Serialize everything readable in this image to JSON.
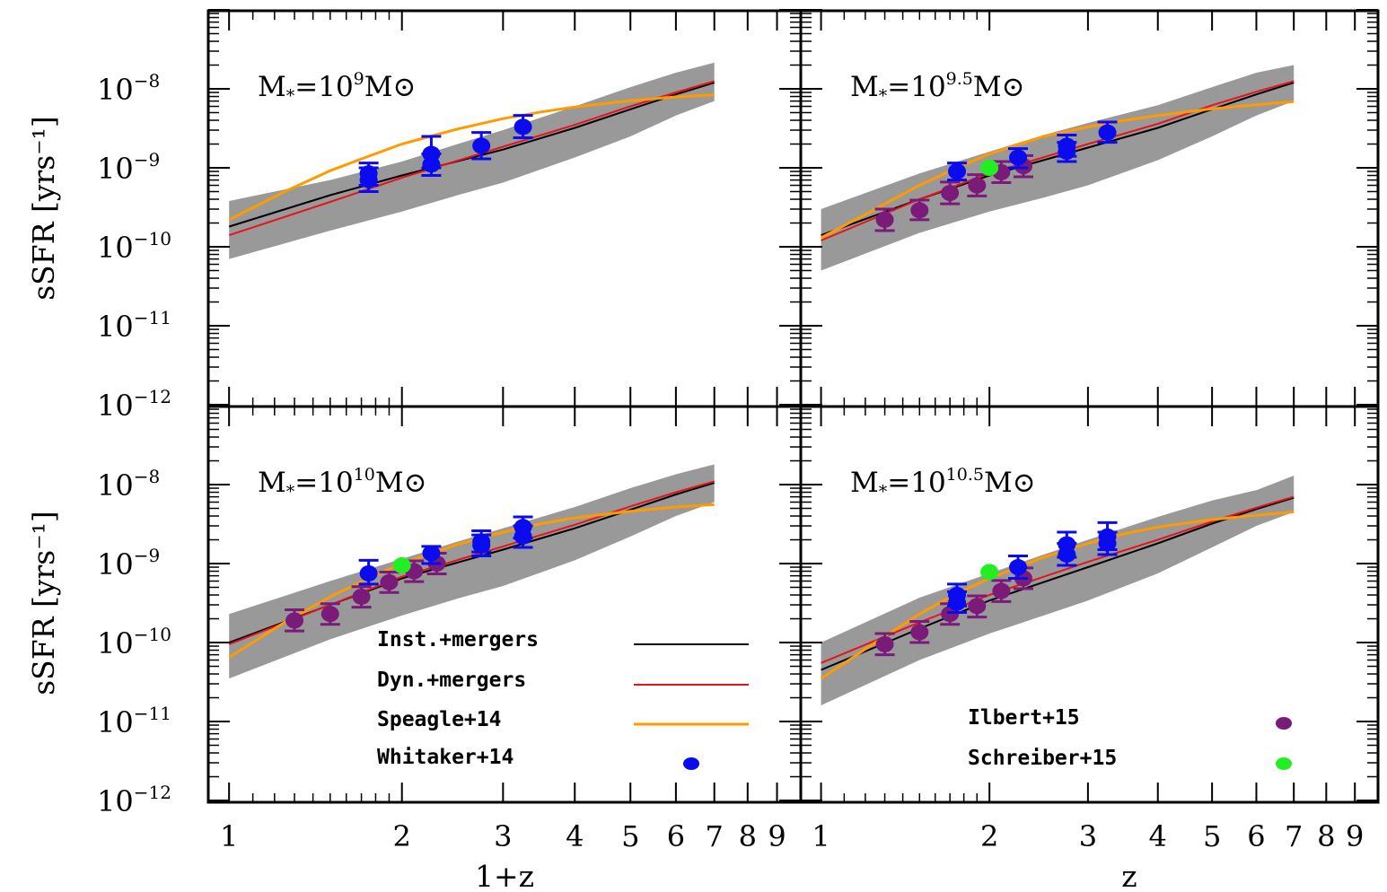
{
  "chart_data": {
    "type": "scatter",
    "xscale": "log",
    "yscale": "log",
    "xlim": [
      0.92,
      9.9
    ],
    "ylim": [
      1e-12,
      1e-07
    ],
    "x_tick_labels": [
      "1",
      "2",
      "3",
      "4",
      "5",
      "6",
      "7",
      "8",
      "9"
    ],
    "y_tick_labels": [
      {
        "base": "10",
        "exp": "−8"
      },
      {
        "base": "10",
        "exp": "−9"
      },
      {
        "base": "10",
        "exp": "−10"
      },
      {
        "base": "10",
        "exp": "−11"
      },
      {
        "base": "10",
        "exp": "−12"
      }
    ],
    "ylabel": "sSFR [yrs⁻¹]",
    "xlabel": "1+z",
    "xlabel_right": "z",
    "legend": {
      "lines": [
        {
          "label": "Inst.+mergers",
          "color": "#000000"
        },
        {
          "label": "Dyn.+mergers",
          "color": "#e8141c"
        },
        {
          "label": "Speagle+14",
          "color": "#ff9a00"
        }
      ],
      "markers": [
        {
          "label": "Whitaker+14",
          "color": "#0b0bef"
        },
        {
          "label": "Ilbert+15",
          "color": "#7a1b7a"
        },
        {
          "label": "Schreiber+15",
          "color": "#22ee22"
        }
      ]
    },
    "colors": {
      "band": "#999999",
      "inst": "#000000",
      "dyn": "#e8141c",
      "speagle": "#ff9a00",
      "whitaker": "#0b0bef",
      "ilbert": "#7a1b7a",
      "schreiber": "#22ee22"
    },
    "panels": [
      {
        "label": {
          "prefix": "M",
          "sub": "*",
          "eq": "=10",
          "exp": "9",
          "suffix": "M⊙"
        },
        "band": {
          "x": [
            1,
            1.5,
            2,
            2.5,
            3,
            4,
            5,
            6,
            7
          ],
          "lo": [
            7e-11,
            1.6e-10,
            2.8e-10,
            4.5e-10,
            6.5e-10,
            1.35e-09,
            2.5e-09,
            4.6e-09,
            7e-09
          ],
          "hi": [
            3.8e-10,
            7e-10,
            1.2e-09,
            2e-09,
            3e-09,
            6e-09,
            1.05e-08,
            1.6e-08,
            2.15e-08
          ]
        },
        "inst": {
          "x": [
            1,
            1.5,
            2,
            3,
            4,
            5,
            6,
            7
          ],
          "y": [
            1.8e-10,
            4.5e-10,
            8e-10,
            1.7e-09,
            3.2e-09,
            5.5e-09,
            8.5e-09,
            1.2e-08
          ]
        },
        "dyn": {
          "x": [
            1,
            1.5,
            2,
            3,
            4,
            5,
            6,
            7
          ],
          "y": [
            1.4e-10,
            3.7e-10,
            7.5e-10,
            1.85e-09,
            3.5e-09,
            6e-09,
            9e-09,
            1.25e-08
          ]
        },
        "speagle": {
          "x": [
            1,
            1.25,
            1.5,
            1.75,
            2,
            2.5,
            3,
            3.5,
            4,
            5,
            6,
            7
          ],
          "y": [
            2.2e-10,
            5e-10,
            9.2e-10,
            1.4e-09,
            2e-09,
            3.1e-09,
            4.2e-09,
            5.1e-09,
            5.9e-09,
            7.1e-09,
            7.9e-09,
            8.4e-09
          ]
        },
        "whitaker": [
          {
            "x": 1.75,
            "y": 8.5e-10,
            "lo": 6e-10,
            "hi": 1.15e-09
          },
          {
            "x": 1.75,
            "y": 7e-10,
            "lo": 5e-10,
            "hi": 1e-09
          },
          {
            "x": 2.25,
            "y": 1.5e-09,
            "lo": 1e-09,
            "hi": 2.5e-09
          },
          {
            "x": 2.25,
            "y": 1.1e-09,
            "lo": 8e-10,
            "hi": 1.5e-09
          },
          {
            "x": 2.75,
            "y": 1.9e-09,
            "lo": 1.3e-09,
            "hi": 2.8e-09
          },
          {
            "x": 3.25,
            "y": 3.3e-09,
            "lo": 2.4e-09,
            "hi": 4.6e-09
          }
        ],
        "ilbert": [],
        "schreiber": []
      },
      {
        "label": {
          "prefix": "M",
          "sub": "*",
          "eq": "=10",
          "exp": "9.5",
          "suffix": "M⊙"
        },
        "band": {
          "x": [
            1,
            1.5,
            2,
            2.5,
            3,
            4,
            5,
            6,
            7
          ],
          "lo": [
            5e-11,
            1.5e-10,
            2.8e-10,
            4.2e-10,
            6e-10,
            1.25e-09,
            2.5e-09,
            4.6e-09,
            7e-09
          ],
          "hi": [
            3e-10,
            8.5e-10,
            1.6e-09,
            2.6e-09,
            3.7e-09,
            6.2e-09,
            1.05e-08,
            1.6e-08,
            2e-08
          ]
        },
        "inst": {
          "x": [
            1,
            1.5,
            2,
            3,
            4,
            5,
            6,
            7
          ],
          "y": [
            1.4e-10,
            4e-10,
            8e-10,
            1.8e-09,
            3.2e-09,
            5.5e-09,
            8.5e-09,
            1.2e-08
          ]
        },
        "dyn": {
          "x": [
            1,
            1.5,
            2,
            3,
            4,
            5,
            6,
            7
          ],
          "y": [
            1.2e-10,
            4e-10,
            8.5e-10,
            2e-09,
            3.6e-09,
            6.2e-09,
            9.2e-09,
            1.25e-08
          ]
        },
        "speagle": {
          "x": [
            1,
            1.25,
            1.5,
            1.75,
            2,
            2.5,
            3,
            3.5,
            4,
            5,
            6,
            7
          ],
          "y": [
            1.3e-10,
            3e-10,
            6e-10,
            1e-09,
            1.5e-09,
            2.5e-09,
            3.3e-09,
            4e-09,
            4.6e-09,
            5.6e-09,
            6.3e-09,
            6.9e-09
          ]
        },
        "whitaker": [
          {
            "x": 1.75,
            "y": 9e-10,
            "lo": 7e-10,
            "hi": 1.15e-09
          },
          {
            "x": 2.25,
            "y": 1.35e-09,
            "lo": 1e-09,
            "hi": 1.75e-09
          },
          {
            "x": 2.75,
            "y": 1.9e-09,
            "lo": 1.4e-09,
            "hi": 2.6e-09
          },
          {
            "x": 2.75,
            "y": 1.6e-09,
            "lo": 1.2e-09,
            "hi": 2.1e-09
          },
          {
            "x": 3.25,
            "y": 2.8e-09,
            "lo": 2.1e-09,
            "hi": 3.8e-09
          }
        ],
        "ilbert": [
          {
            "x": 1.3,
            "y": 2.2e-10,
            "lo": 1.6e-10,
            "hi": 3e-10
          },
          {
            "x": 1.5,
            "y": 2.9e-10,
            "lo": 2.2e-10,
            "hi": 3.9e-10
          },
          {
            "x": 1.7,
            "y": 4.8e-10,
            "lo": 3.5e-10,
            "hi": 6.6e-10
          },
          {
            "x": 1.9,
            "y": 6e-10,
            "lo": 4.4e-10,
            "hi": 8.2e-10
          },
          {
            "x": 2.1,
            "y": 8.8e-10,
            "lo": 6.5e-10,
            "hi": 1.2e-09
          },
          {
            "x": 2.3,
            "y": 1.05e-09,
            "lo": 7.7e-10,
            "hi": 1.43e-09
          }
        ],
        "schreiber": [
          {
            "x": 2.0,
            "y": 1e-09
          }
        ]
      },
      {
        "label": {
          "prefix": "M",
          "sub": "*",
          "eq": "=10",
          "exp": "10",
          "suffix": "M⊙"
        },
        "band": {
          "x": [
            1,
            1.5,
            2,
            2.5,
            3,
            4,
            5,
            6,
            7
          ],
          "lo": [
            3.5e-11,
            1.1e-10,
            2.2e-10,
            3.6e-10,
            5.2e-10,
            1.1e-09,
            2.2e-09,
            4e-09,
            6e-09
          ],
          "hi": [
            2.3e-10,
            6e-10,
            1.15e-09,
            1.9e-09,
            2.8e-09,
            5.2e-09,
            9e-09,
            1.35e-08,
            1.8e-08
          ]
        },
        "inst": {
          "x": [
            1,
            1.5,
            2,
            3,
            4,
            5,
            6,
            7
          ],
          "y": [
            1e-10,
            3e-10,
            6.5e-10,
            1.5e-09,
            2.8e-09,
            4.8e-09,
            7.5e-09,
            1.05e-08
          ]
        },
        "dyn": {
          "x": [
            1,
            1.5,
            2,
            3,
            4,
            5,
            6,
            7
          ],
          "y": [
            9.5e-11,
            3e-10,
            6.8e-10,
            1.65e-09,
            3.1e-09,
            5.3e-09,
            8e-09,
            1.1e-08
          ]
        },
        "speagle": {
          "x": [
            1,
            1.25,
            1.5,
            1.75,
            2,
            2.5,
            3,
            3.5,
            4,
            5,
            6,
            7
          ],
          "y": [
            6.5e-11,
            1.8e-10,
            3.8e-10,
            6.5e-10,
            1e-09,
            1.75e-09,
            2.5e-09,
            3.2e-09,
            3.8e-09,
            4.6e-09,
            5.2e-09,
            5.6e-09
          ]
        },
        "whitaker": [
          {
            "x": 1.75,
            "y": 7.5e-10,
            "lo": 5.5e-10,
            "hi": 1.1e-09
          },
          {
            "x": 2.25,
            "y": 1.35e-09,
            "lo": 1e-09,
            "hi": 1.65e-09
          },
          {
            "x": 2.75,
            "y": 1.9e-09,
            "lo": 1.4e-09,
            "hi": 2.6e-09
          },
          {
            "x": 2.75,
            "y": 1.7e-09,
            "lo": 1.25e-09,
            "hi": 2.3e-09
          },
          {
            "x": 3.25,
            "y": 2.9e-09,
            "lo": 2.1e-09,
            "hi": 3.9e-09
          },
          {
            "x": 3.25,
            "y": 2.2e-09,
            "lo": 1.6e-09,
            "hi": 3e-09
          }
        ],
        "ilbert": [
          {
            "x": 1.3,
            "y": 1.9e-10,
            "lo": 1.4e-10,
            "hi": 2.6e-10
          },
          {
            "x": 1.5,
            "y": 2.3e-10,
            "lo": 1.7e-10,
            "hi": 3.1e-10
          },
          {
            "x": 1.7,
            "y": 3.8e-10,
            "lo": 2.8e-10,
            "hi": 5.1e-10
          },
          {
            "x": 1.9,
            "y": 5.8e-10,
            "lo": 4.3e-10,
            "hi": 7.8e-10
          },
          {
            "x": 2.1,
            "y": 8e-10,
            "lo": 5.9e-10,
            "hi": 1.08e-09
          },
          {
            "x": 2.3,
            "y": 1e-09,
            "lo": 7.4e-10,
            "hi": 1.35e-09
          }
        ],
        "schreiber": [
          {
            "x": 2.0,
            "y": 9.5e-10
          }
        ]
      },
      {
        "label": {
          "prefix": "M",
          "sub": "*",
          "eq": "=10",
          "exp": "10.5",
          "suffix": "M⊙"
        },
        "band": {
          "x": [
            1,
            1.5,
            2,
            2.5,
            3,
            4,
            5,
            6,
            7
          ],
          "lo": [
            1.6e-11,
            6e-11,
            1.3e-10,
            2.2e-10,
            3.4e-10,
            7.5e-10,
            1.6e-09,
            3e-09,
            4.5e-09
          ],
          "hi": [
            1e-10,
            3.7e-10,
            7.5e-10,
            1.3e-09,
            2e-09,
            3.9e-09,
            6.3e-09,
            8.5e-09,
            1.3e-08
          ]
        },
        "inst": {
          "x": [
            1,
            1.5,
            2,
            3,
            4,
            5,
            6,
            7
          ],
          "y": [
            4.5e-11,
            1.5e-10,
            3.4e-10,
            9e-10,
            1.8e-09,
            3.2e-09,
            4.9e-09,
            6.8e-09
          ]
        },
        "dyn": {
          "x": [
            1,
            1.5,
            2,
            3,
            4,
            5,
            6,
            7
          ],
          "y": [
            5.5e-11,
            1.8e-10,
            4e-10,
            1.05e-09,
            2e-09,
            3.4e-09,
            5.1e-09,
            7e-09
          ]
        },
        "speagle": {
          "x": [
            1,
            1.25,
            1.5,
            1.75,
            2,
            2.5,
            3,
            3.5,
            4,
            5,
            6,
            7
          ],
          "y": [
            3.5e-11,
            1e-10,
            2.3e-10,
            4.2e-10,
            6.5e-10,
            1.2e-09,
            1.8e-09,
            2.4e-09,
            2.9e-09,
            3.6e-09,
            4.1e-09,
            4.5e-09
          ]
        },
        "whitaker": [
          {
            "x": 1.75,
            "y": 4e-10,
            "lo": 2.9e-10,
            "hi": 5.5e-10
          },
          {
            "x": 1.75,
            "y": 3.2e-10,
            "lo": 2.4e-10,
            "hi": 4.4e-10
          },
          {
            "x": 2.25,
            "y": 9e-10,
            "lo": 6.5e-10,
            "hi": 1.25e-09
          },
          {
            "x": 2.75,
            "y": 1.75e-09,
            "lo": 1.2e-09,
            "hi": 2.5e-09
          },
          {
            "x": 2.75,
            "y": 1.3e-09,
            "lo": 9.5e-10,
            "hi": 1.8e-09
          },
          {
            "x": 3.25,
            "y": 2.2e-09,
            "lo": 1.5e-09,
            "hi": 3.3e-09
          },
          {
            "x": 3.25,
            "y": 1.8e-09,
            "lo": 1.3e-09,
            "hi": 2.5e-09
          }
        ],
        "ilbert": [
          {
            "x": 1.3,
            "y": 9.5e-11,
            "lo": 7e-11,
            "hi": 1.3e-10
          },
          {
            "x": 1.5,
            "y": 1.35e-10,
            "lo": 1e-10,
            "hi": 1.85e-10
          },
          {
            "x": 1.7,
            "y": 2.3e-10,
            "lo": 1.7e-10,
            "hi": 3.1e-10
          },
          {
            "x": 1.9,
            "y": 2.9e-10,
            "lo": 2.1e-10,
            "hi": 3.9e-10
          },
          {
            "x": 2.1,
            "y": 4.5e-10,
            "lo": 3.3e-10,
            "hi": 6.1e-10
          },
          {
            "x": 2.3,
            "y": 6.5e-10,
            "lo": 4.8e-10,
            "hi": 8.8e-10
          }
        ],
        "schreiber": [
          {
            "x": 2.0,
            "y": 7.8e-10
          }
        ]
      }
    ]
  }
}
